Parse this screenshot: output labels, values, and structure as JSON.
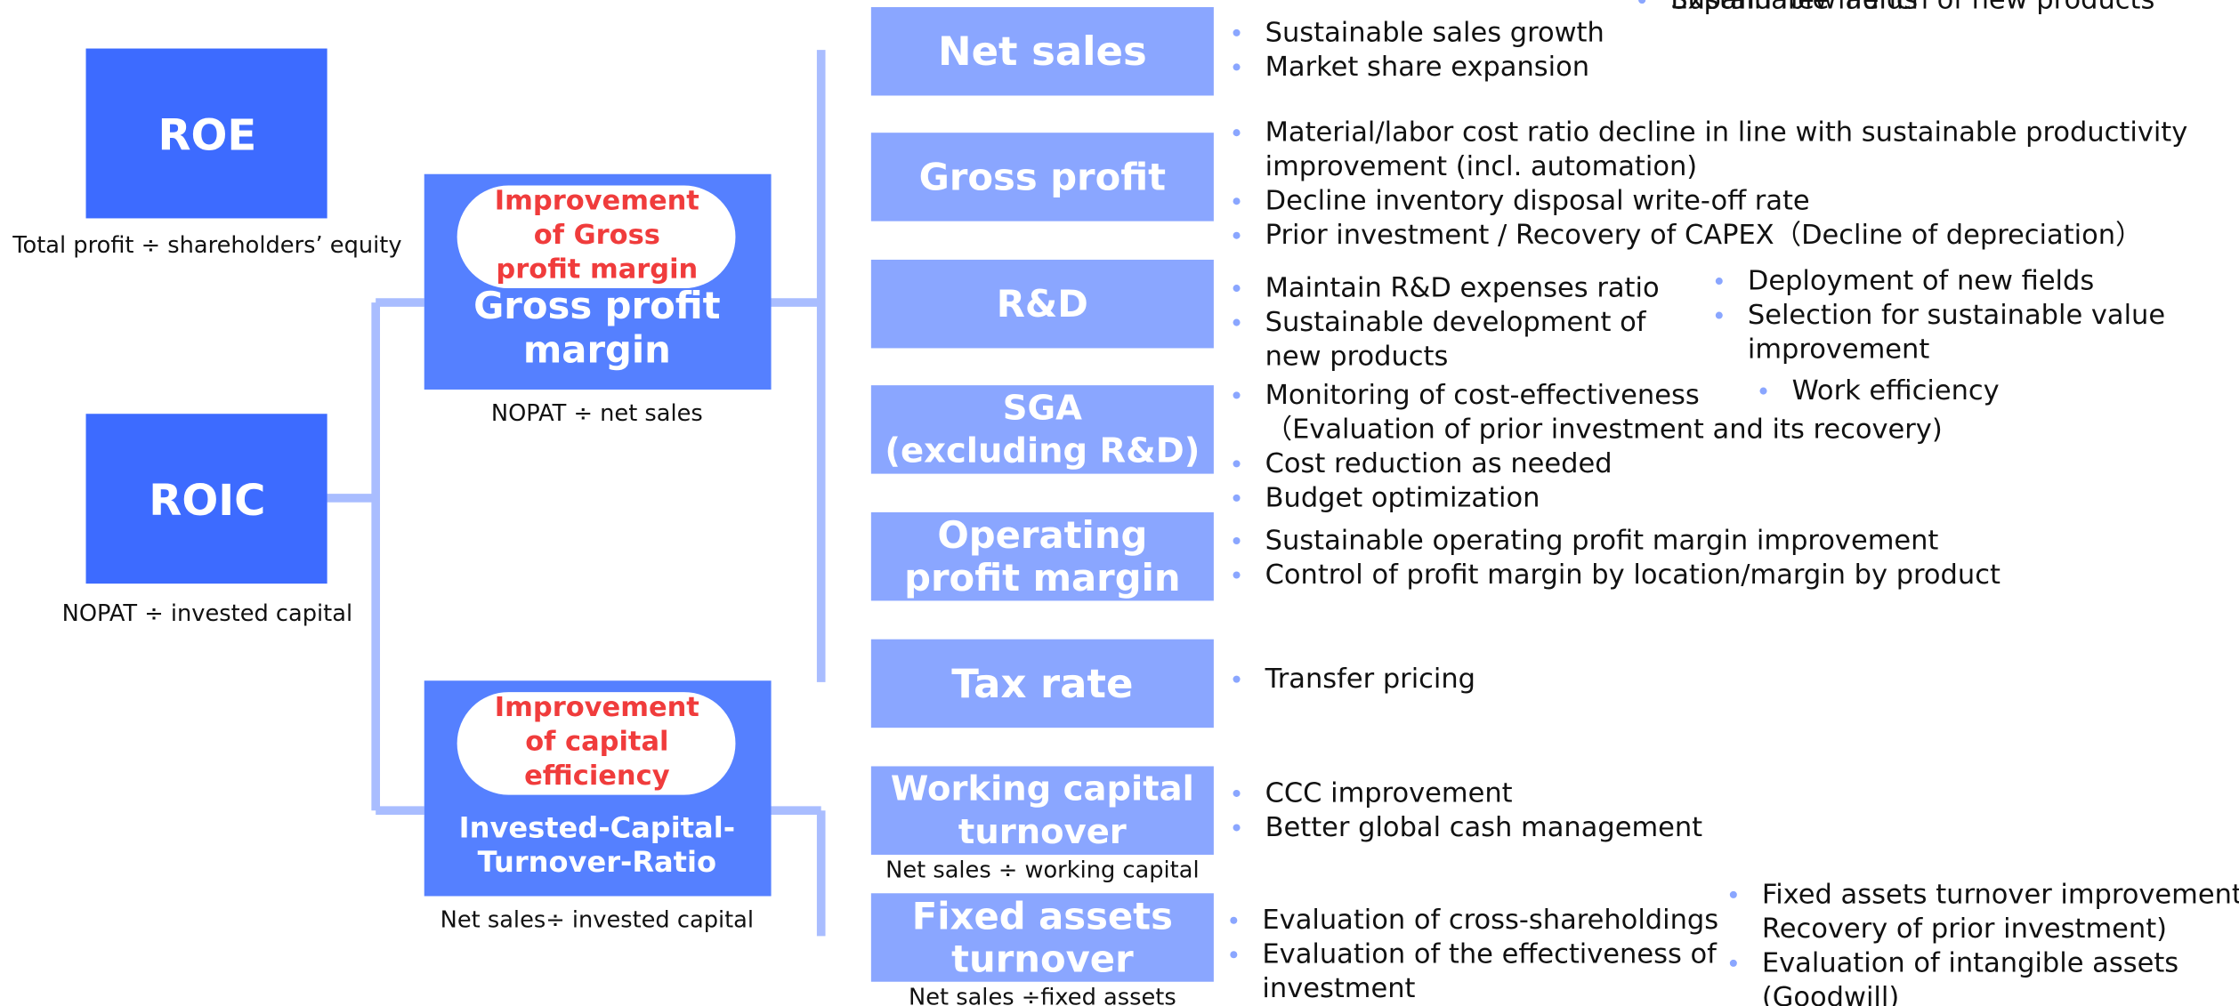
{
  "left": [
    {
      "label": "ROE",
      "subtitle": "Total profit ÷ shareholders’ equity"
    },
    {
      "label": "ROIC",
      "subtitle": "NOPAT ÷ invested capital"
    }
  ],
  "middle": [
    {
      "badge": [
        "Improvement",
        "of Gross",
        "profit margin"
      ],
      "label": [
        "Gross profit",
        "margin"
      ],
      "subtitle": "NOPAT ÷ net sales"
    },
    {
      "badge": [
        "Improvement",
        "of capital",
        "efficiency"
      ],
      "label": [
        "Invested-Capital-",
        "Turnover-Ratio"
      ],
      "subtitle": "Net sales÷ invested capital"
    }
  ],
  "right": [
    {
      "label": [
        "Net sales"
      ],
      "columns": [
        [
          [
            "Sustainable sales growth"
          ],
          [
            "Market share expansion"
          ]
        ],
        [
          [
            "Sustainable launch of new products"
          ],
          [
            "Expand new fields"
          ]
        ]
      ]
    },
    {
      "label": [
        "Gross profit"
      ],
      "columns": [
        [
          [
            "Material/labor cost ratio decline in line with sustainable productivity",
            "improvement (incl. automation)"
          ],
          [
            "Decline inventory disposal write-off rate"
          ],
          [
            "Prior investment / Recovery of CAPEX（Decline of depreciation）"
          ]
        ]
      ]
    },
    {
      "label": [
        "R&D"
      ],
      "columns": [
        [
          [
            "Maintain R&D expenses ratio"
          ],
          [
            "Sustainable development of",
            "new products"
          ]
        ],
        [
          [
            "Deployment of new fields"
          ],
          [
            "Selection for sustainable value",
            "improvement"
          ]
        ]
      ]
    },
    {
      "label": [
        "SGA",
        "(excluding R&D)"
      ],
      "columns": [
        [
          [
            "Monitoring of cost-effectiveness",
            "（Evaluation of prior investment and its recovery)"
          ],
          [
            "Cost reduction as needed"
          ],
          [
            "Budget optimization"
          ]
        ],
        [
          [
            "Work efficiency"
          ]
        ]
      ]
    },
    {
      "label": [
        "Operating",
        "profit margin"
      ],
      "columns": [
        [
          [
            "Sustainable operating profit margin improvement"
          ],
          [
            "Control of profit margin by location/margin by product"
          ]
        ]
      ]
    },
    {
      "label": [
        "Tax rate"
      ],
      "columns": [
        [
          [
            "Transfer pricing"
          ]
        ]
      ]
    },
    {
      "label": [
        "Working capital",
        "turnover"
      ],
      "subtitle": "Net sales ÷ working capital",
      "columns": [
        [
          [
            "CCC improvement"
          ],
          [
            "Better global cash management"
          ]
        ]
      ]
    },
    {
      "label": [
        "Fixed assets",
        "turnover"
      ],
      "subtitle": "Net sales ÷fixed assets",
      "columns": [
        [
          [
            "Evaluation of cross-shareholdings"
          ],
          [
            "Evaluation of the effectiveness of",
            "investment"
          ]
        ],
        [
          [
            "Fixed assets turnover improvement",
            "Recovery of prior investment)"
          ],
          [
            "Evaluation of intangible assets",
            "(Goodwill)"
          ]
        ]
      ]
    }
  ]
}
